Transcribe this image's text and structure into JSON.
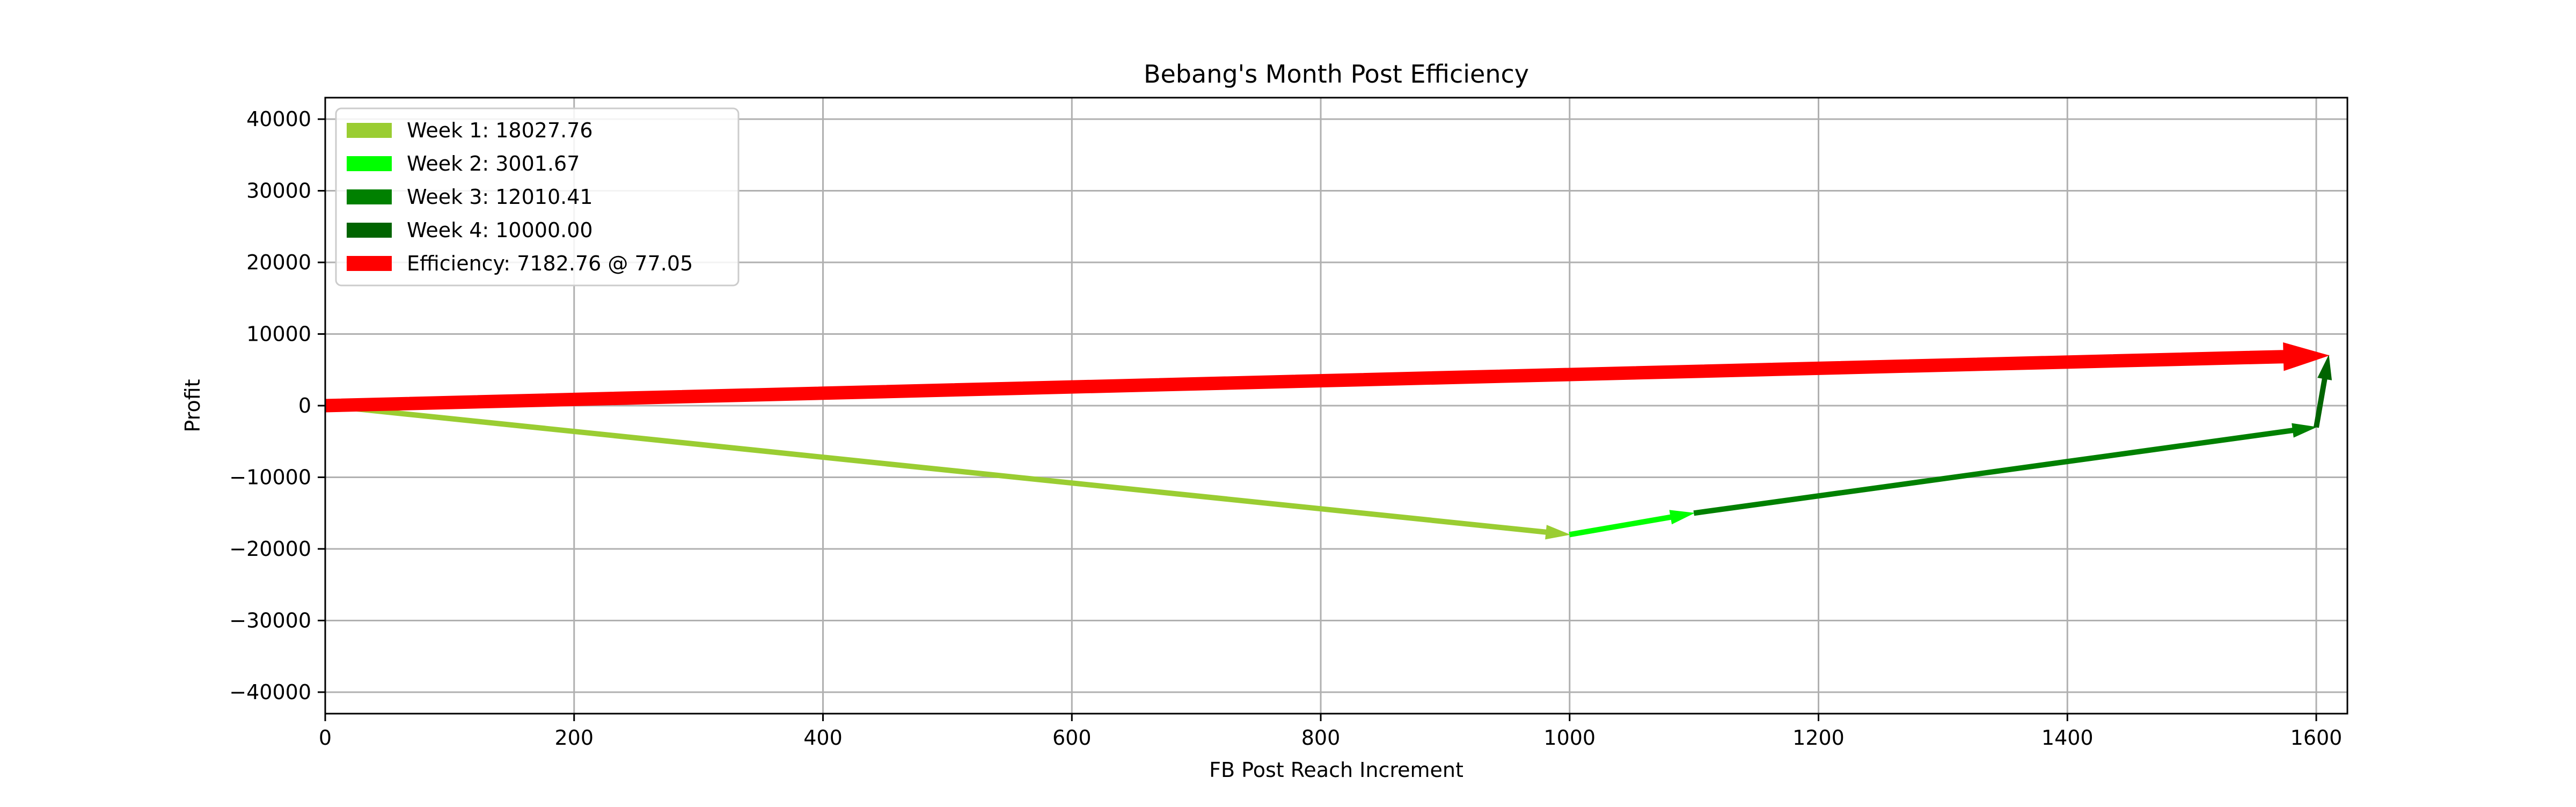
{
  "chart_data": {
    "type": "line",
    "chart_kind": "arrow-vector-chart",
    "title": "Bebang's Month Post Efficiency",
    "xlabel": "FB Post Reach Increment",
    "ylabel": "Profit",
    "xlim": [
      0,
      1625
    ],
    "ylim": [
      -43000,
      43000
    ],
    "x_ticks": [
      0,
      200,
      400,
      600,
      800,
      1000,
      1200,
      1400,
      1600
    ],
    "x_tick_labels": [
      "0",
      "200",
      "400",
      "600",
      "800",
      "1000",
      "1200",
      "1400",
      "1600"
    ],
    "y_ticks": [
      -40000,
      -30000,
      -20000,
      -10000,
      0,
      10000,
      20000,
      30000,
      40000
    ],
    "y_tick_labels": [
      "−40000",
      "−30000",
      "−20000",
      "−10000",
      "0",
      "10000",
      "20000",
      "30000",
      "40000"
    ],
    "grid": true,
    "legend_position": "upper left",
    "series": [
      {
        "name": "Week 1: 18027.76",
        "color": "#9acd32",
        "kind": "arrow",
        "start": [
          0,
          0
        ],
        "end": [
          1000,
          -18000
        ]
      },
      {
        "name": "Week 2: 3001.67",
        "color": "#00ff00",
        "kind": "arrow",
        "start": [
          1000,
          -18000
        ],
        "end": [
          1100,
          -15000
        ]
      },
      {
        "name": "Week 3: 12010.41",
        "color": "#008000",
        "kind": "arrow",
        "start": [
          1100,
          -15000
        ],
        "end": [
          1600,
          -3000
        ]
      },
      {
        "name": "Week 4: 10000.00",
        "color": "#006400",
        "kind": "arrow",
        "start": [
          1600,
          -3000
        ],
        "end": [
          1610,
          7000
        ]
      },
      {
        "name": "Efficiency: 7182.76 @ 77.05",
        "color": "#ff0000",
        "kind": "arrow",
        "start": [
          0,
          0
        ],
        "end": [
          1610,
          7000
        ]
      }
    ]
  }
}
